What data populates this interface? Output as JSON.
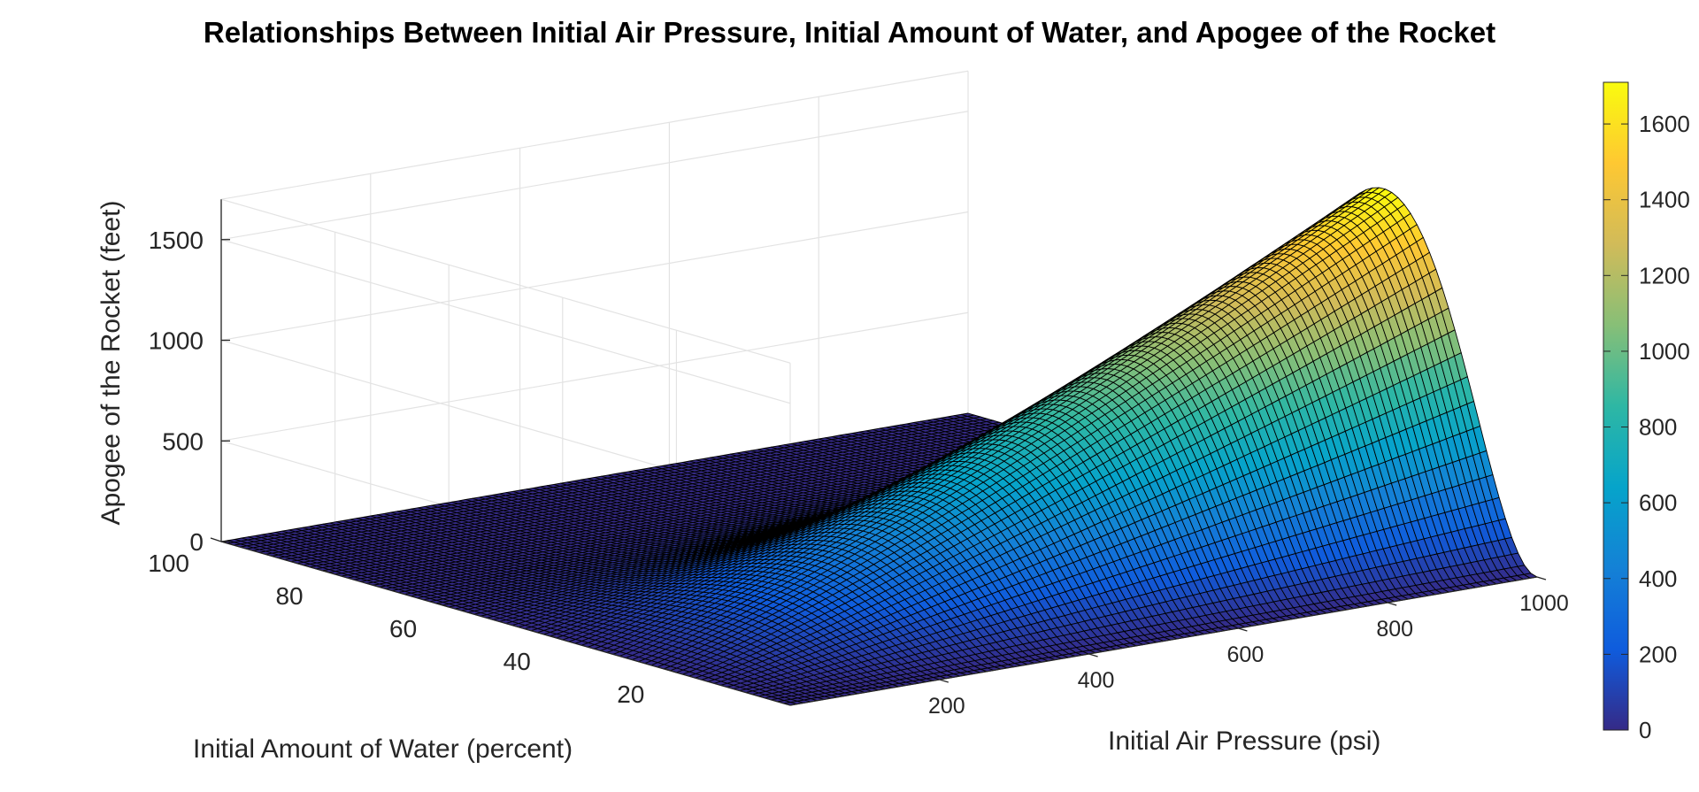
{
  "chart_data": {
    "type": "surface",
    "title": "Relationships Between Initial Air Pressure, Initial Amount of Water, and Apogee of the Rocket",
    "xlabel": "Initial Air Pressure (psi)",
    "ylabel": "Initial Amount of Water (percent)",
    "zlabel": "Apogee of the Rocket (feet)",
    "x_range": [
      0,
      1000
    ],
    "y_range": [
      0,
      100
    ],
    "z_range": [
      0,
      1700
    ],
    "x_ticks": [
      "200",
      "400",
      "600",
      "800",
      "1000"
    ],
    "y_ticks": [
      "20",
      "40",
      "60",
      "80",
      "100"
    ],
    "z_ticks": [
      "0",
      "500",
      "1000",
      "1500"
    ],
    "colorbar_ticks": [
      "0",
      "200",
      "400",
      "600",
      "800",
      "1000",
      "1200",
      "1400",
      "1600"
    ],
    "colorbar_range": [
      0,
      1710
    ],
    "colormap": "parula",
    "peak": {
      "pressure_psi": 1000,
      "water_percent": 27,
      "apogee_ft": 1710
    },
    "grid": true,
    "colorbar_placement": "right"
  }
}
